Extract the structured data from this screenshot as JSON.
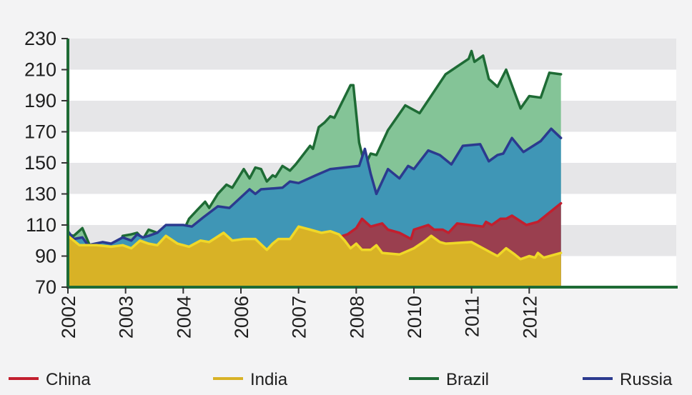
{
  "chart_data": {
    "type": "area",
    "title": "",
    "xlabel": "",
    "ylabel": "",
    "ylim": [
      70,
      230
    ],
    "xlim": [
      2002.0,
      2012.55
    ],
    "yticks": [
      70,
      90,
      110,
      130,
      150,
      170,
      190,
      210,
      230
    ],
    "xtick_labels": [
      "2002",
      "2003",
      "2004",
      "2006",
      "2007",
      "2008",
      "2010",
      "2011",
      "2012"
    ],
    "xtick_positions": [
      2002,
      2003,
      2004,
      2005,
      2006,
      2007,
      2008,
      2009,
      2010
    ],
    "grid": "alternating horizontal bands",
    "legend_position": "bottom",
    "series": [
      {
        "name": "Brazil",
        "line_color": "#1e6b35",
        "fill_color": "#84c497",
        "points": [
          [
            2002.0,
            104
          ],
          [
            2002.1,
            103
          ],
          [
            2002.25,
            108
          ],
          [
            2002.4,
            95
          ],
          [
            2002.45,
            86
          ],
          [
            2002.5,
            83
          ],
          [
            2002.6,
            76
          ],
          [
            2002.65,
            84
          ],
          [
            2002.75,
            91
          ],
          [
            2002.85,
            89
          ],
          [
            2002.95,
            103
          ],
          [
            2003.1,
            104
          ],
          [
            2003.2,
            105
          ],
          [
            2003.3,
            101
          ],
          [
            2003.4,
            107
          ],
          [
            2003.55,
            105
          ],
          [
            2003.7,
            103
          ],
          [
            2003.8,
            106
          ],
          [
            2003.92,
            102
          ],
          [
            2004.05,
            110
          ],
          [
            2004.1,
            114
          ],
          [
            2004.25,
            120
          ],
          [
            2004.38,
            125
          ],
          [
            2004.45,
            121
          ],
          [
            2004.6,
            130
          ],
          [
            2004.75,
            136
          ],
          [
            2004.85,
            134
          ],
          [
            2004.95,
            140
          ],
          [
            2005.05,
            146
          ],
          [
            2005.15,
            140
          ],
          [
            2005.25,
            147
          ],
          [
            2005.35,
            146
          ],
          [
            2005.45,
            138
          ],
          [
            2005.55,
            142
          ],
          [
            2005.6,
            141
          ],
          [
            2005.72,
            148
          ],
          [
            2005.85,
            145
          ],
          [
            2005.95,
            149
          ],
          [
            2006.2,
            161
          ],
          [
            2006.25,
            159
          ],
          [
            2006.35,
            173
          ],
          [
            2006.45,
            176
          ],
          [
            2006.55,
            180
          ],
          [
            2006.62,
            179
          ],
          [
            2006.9,
            200
          ],
          [
            2006.95,
            200
          ],
          [
            2007.05,
            163
          ],
          [
            2007.15,
            148
          ],
          [
            2007.25,
            156
          ],
          [
            2007.35,
            155
          ],
          [
            2007.55,
            171
          ],
          [
            2007.85,
            187
          ],
          [
            2008.1,
            182
          ],
          [
            2008.55,
            207
          ],
          [
            2008.95,
            217
          ],
          [
            2009.0,
            222
          ],
          [
            2009.05,
            215
          ],
          [
            2009.2,
            219
          ],
          [
            2009.3,
            204
          ],
          [
            2009.45,
            199
          ],
          [
            2009.6,
            210
          ],
          [
            2009.85,
            185
          ],
          [
            2010.0,
            193
          ],
          [
            2010.2,
            192
          ],
          [
            2010.35,
            208
          ],
          [
            2010.55,
            207
          ]
        ]
      },
      {
        "name": "Russia",
        "line_color": "#2b3a8f",
        "fill_color": "#3f96b6",
        "points": [
          [
            2002.0,
            106
          ],
          [
            2002.1,
            101
          ],
          [
            2002.25,
            102
          ],
          [
            2002.35,
            97
          ],
          [
            2002.6,
            99
          ],
          [
            2002.75,
            98
          ],
          [
            2002.95,
            102
          ],
          [
            2003.1,
            100
          ],
          [
            2003.2,
            104
          ],
          [
            2003.3,
            102
          ],
          [
            2003.4,
            103
          ],
          [
            2003.55,
            105
          ],
          [
            2003.7,
            110
          ],
          [
            2003.85,
            110
          ],
          [
            2004.0,
            110
          ],
          [
            2004.15,
            109
          ],
          [
            2004.35,
            115
          ],
          [
            2004.6,
            122
          ],
          [
            2004.8,
            121
          ],
          [
            2005.15,
            133
          ],
          [
            2005.25,
            130
          ],
          [
            2005.35,
            133
          ],
          [
            2005.72,
            134
          ],
          [
            2005.85,
            138
          ],
          [
            2006.0,
            137
          ],
          [
            2006.3,
            142
          ],
          [
            2006.55,
            146
          ],
          [
            2007.05,
            148
          ],
          [
            2007.15,
            159
          ],
          [
            2007.25,
            143
          ],
          [
            2007.35,
            130
          ],
          [
            2007.55,
            146
          ],
          [
            2007.75,
            140
          ],
          [
            2007.9,
            148
          ],
          [
            2008.0,
            146
          ],
          [
            2008.25,
            158
          ],
          [
            2008.45,
            155
          ],
          [
            2008.65,
            149
          ],
          [
            2008.85,
            161
          ],
          [
            2009.15,
            162
          ],
          [
            2009.3,
            151
          ],
          [
            2009.45,
            155
          ],
          [
            2009.55,
            156
          ],
          [
            2009.7,
            166
          ],
          [
            2009.9,
            157
          ],
          [
            2010.2,
            164
          ],
          [
            2010.38,
            172
          ],
          [
            2010.55,
            166
          ]
        ]
      },
      {
        "name": "China",
        "line_color": "#c21f2e",
        "fill_color": "#9a3f4f",
        "points": [
          [
            2002.0,
            101
          ],
          [
            2002.2,
            96
          ],
          [
            2002.5,
            94
          ],
          [
            2003.0,
            94
          ],
          [
            2003.1,
            93
          ],
          [
            2003.25,
            93
          ],
          [
            2003.4,
            90
          ],
          [
            2003.55,
            88
          ],
          [
            2003.7,
            92
          ],
          [
            2003.9,
            90
          ],
          [
            2004.0,
            93
          ],
          [
            2004.2,
            90
          ],
          [
            2004.35,
            93
          ],
          [
            2004.55,
            95
          ],
          [
            2004.75,
            95
          ],
          [
            2004.95,
            98
          ],
          [
            2005.05,
            95
          ],
          [
            2005.2,
            95
          ],
          [
            2005.35,
            95
          ],
          [
            2005.5,
            94
          ],
          [
            2005.65,
            97
          ],
          [
            2005.75,
            96
          ],
          [
            2005.95,
            98
          ],
          [
            2006.15,
            98
          ],
          [
            2006.3,
            99
          ],
          [
            2006.45,
            97
          ],
          [
            2006.6,
            101
          ],
          [
            2006.85,
            104
          ],
          [
            2007.0,
            108
          ],
          [
            2007.1,
            114
          ],
          [
            2007.25,
            109
          ],
          [
            2007.45,
            111
          ],
          [
            2007.55,
            107
          ],
          [
            2007.75,
            105
          ],
          [
            2007.95,
            101
          ],
          [
            2008.0,
            107
          ],
          [
            2008.25,
            110
          ],
          [
            2008.35,
            107
          ],
          [
            2008.5,
            107
          ],
          [
            2008.6,
            105
          ],
          [
            2008.75,
            111
          ],
          [
            2009.2,
            109
          ],
          [
            2009.25,
            112
          ],
          [
            2009.35,
            110
          ],
          [
            2009.5,
            114
          ],
          [
            2009.6,
            114
          ],
          [
            2009.7,
            116
          ],
          [
            2009.95,
            110
          ],
          [
            2010.15,
            112
          ],
          [
            2010.55,
            124
          ]
        ]
      },
      {
        "name": "India",
        "line_color": "#f0d828",
        "fill_color": "#d8b226",
        "points": [
          [
            2002.0,
            103
          ],
          [
            2002.2,
            97
          ],
          [
            2002.5,
            97
          ],
          [
            2002.75,
            96
          ],
          [
            2002.95,
            97
          ],
          [
            2003.1,
            95
          ],
          [
            2003.25,
            100
          ],
          [
            2003.4,
            98
          ],
          [
            2003.55,
            97
          ],
          [
            2003.7,
            103
          ],
          [
            2003.9,
            98
          ],
          [
            2004.1,
            96
          ],
          [
            2004.3,
            100
          ],
          [
            2004.45,
            99
          ],
          [
            2004.7,
            105
          ],
          [
            2004.85,
            100
          ],
          [
            2005.05,
            101
          ],
          [
            2005.25,
            101
          ],
          [
            2005.45,
            94
          ],
          [
            2005.55,
            98
          ],
          [
            2005.65,
            101
          ],
          [
            2005.85,
            101
          ],
          [
            2006.0,
            109
          ],
          [
            2006.2,
            107
          ],
          [
            2006.4,
            105
          ],
          [
            2006.55,
            106
          ],
          [
            2006.7,
            104
          ],
          [
            2006.8,
            100
          ],
          [
            2006.9,
            95
          ],
          [
            2007.0,
            98
          ],
          [
            2007.1,
            94
          ],
          [
            2007.25,
            94
          ],
          [
            2007.35,
            97
          ],
          [
            2007.45,
            92
          ],
          [
            2007.75,
            91
          ],
          [
            2008.0,
            95
          ],
          [
            2008.2,
            100
          ],
          [
            2008.3,
            103
          ],
          [
            2008.45,
            99
          ],
          [
            2008.55,
            98
          ],
          [
            2009.0,
            99
          ],
          [
            2009.3,
            93
          ],
          [
            2009.45,
            90
          ],
          [
            2009.6,
            95
          ],
          [
            2009.75,
            91
          ],
          [
            2009.85,
            88
          ],
          [
            2010.0,
            90
          ],
          [
            2010.1,
            89
          ],
          [
            2010.15,
            92
          ],
          [
            2010.25,
            89
          ],
          [
            2010.55,
            92
          ]
        ]
      }
    ],
    "draw_order": [
      "Brazil",
      "Russia",
      "China",
      "India"
    ],
    "legend": [
      {
        "name": "China",
        "color": "#c21f2e"
      },
      {
        "name": "India",
        "color": "#d8b226"
      },
      {
        "name": "Brazil",
        "color": "#1e6b35"
      },
      {
        "name": "Russia",
        "color": "#2b3a8f"
      }
    ]
  }
}
